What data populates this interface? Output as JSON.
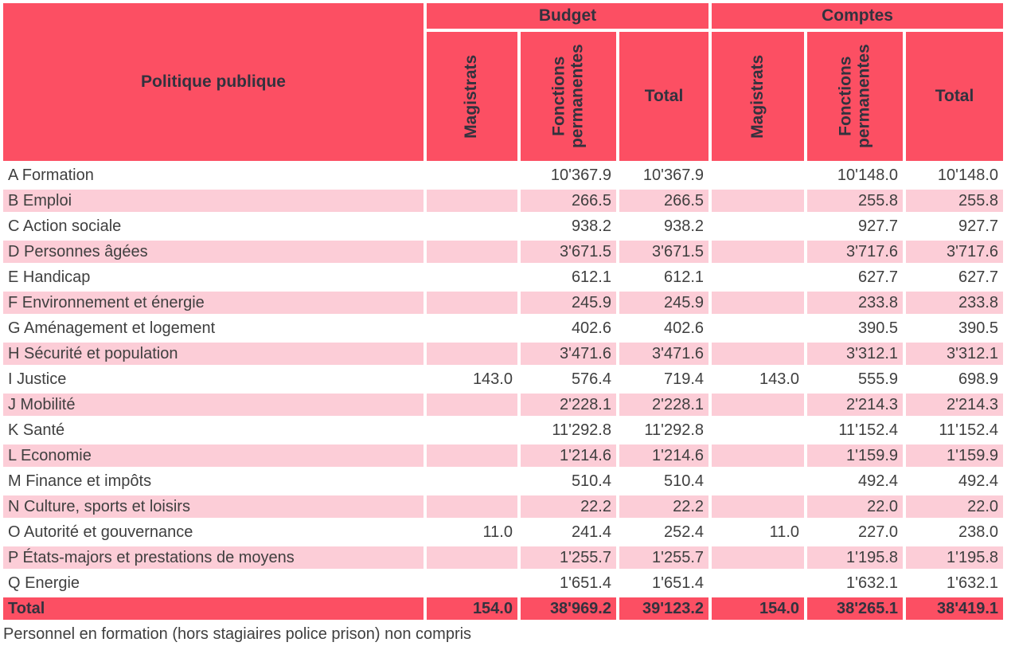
{
  "table": {
    "header": {
      "politique_publique": "Politique publique",
      "groups": [
        {
          "label": "Budget"
        },
        {
          "label": "Comptes"
        }
      ],
      "subcolumns": [
        "Magistrats",
        "Fonctions permanentes",
        "Total"
      ]
    },
    "rows": [
      {
        "label": "A Formation",
        "values": [
          "",
          "10'367.9",
          "10'367.9",
          "",
          "10'148.0",
          "10'148.0"
        ]
      },
      {
        "label": "B Emploi",
        "values": [
          "",
          "266.5",
          "266.5",
          "",
          "255.8",
          "255.8"
        ]
      },
      {
        "label": "C Action sociale",
        "values": [
          "",
          "938.2",
          "938.2",
          "",
          "927.7",
          "927.7"
        ]
      },
      {
        "label": "D Personnes âgées",
        "values": [
          "",
          "3'671.5",
          "3'671.5",
          "",
          "3'717.6",
          "3'717.6"
        ]
      },
      {
        "label": "E Handicap",
        "values": [
          "",
          "612.1",
          "612.1",
          "",
          "627.7",
          "627.7"
        ]
      },
      {
        "label": "F Environnement et énergie",
        "values": [
          "",
          "245.9",
          "245.9",
          "",
          "233.8",
          "233.8"
        ]
      },
      {
        "label": "G Aménagement et logement",
        "values": [
          "",
          "402.6",
          "402.6",
          "",
          "390.5",
          "390.5"
        ]
      },
      {
        "label": "H Sécurité et population",
        "values": [
          "",
          "3'471.6",
          "3'471.6",
          "",
          "3'312.1",
          "3'312.1"
        ]
      },
      {
        "label": "I Justice",
        "values": [
          "143.0",
          "576.4",
          "719.4",
          "143.0",
          "555.9",
          "698.9"
        ]
      },
      {
        "label": "J Mobilité",
        "values": [
          "",
          "2'228.1",
          "2'228.1",
          "",
          "2'214.3",
          "2'214.3"
        ]
      },
      {
        "label": "K Santé",
        "values": [
          "",
          "11'292.8",
          "11'292.8",
          "",
          "11'152.4",
          "11'152.4"
        ]
      },
      {
        "label": "L Economie",
        "values": [
          "",
          "1'214.6",
          "1'214.6",
          "",
          "1'159.9",
          "1'159.9"
        ]
      },
      {
        "label": "M Finance et impôts",
        "values": [
          "",
          "510.4",
          "510.4",
          "",
          "492.4",
          "492.4"
        ]
      },
      {
        "label": "N Culture, sports et loisirs",
        "values": [
          "",
          "22.2",
          "22.2",
          "",
          "22.0",
          "22.0"
        ]
      },
      {
        "label": "O Autorité et gouvernance",
        "values": [
          "11.0",
          "241.4",
          "252.4",
          "11.0",
          "227.0",
          "238.0"
        ]
      },
      {
        "label": "P États-majors et prestations de moyens",
        "values": [
          "",
          "1'255.7",
          "1'255.7",
          "",
          "1'195.8",
          "1'195.8"
        ]
      },
      {
        "label": "Q Energie",
        "values": [
          "",
          "1'651.4",
          "1'651.4",
          "",
          "1'632.1",
          "1'632.1"
        ]
      }
    ],
    "total_row": {
      "label": "Total",
      "values": [
        "154.0",
        "38'969.2",
        "39'123.2",
        "154.0",
        "38'265.1",
        "38'419.1"
      ]
    }
  },
  "footnote": "Personnel en formation (hors stagiaires police prison) non compris",
  "colors": {
    "header_red": "#FC4F63",
    "row_pink": "#FCCDD7",
    "row_white": "#FFFFFF",
    "text_dark": "#3F3F3F"
  }
}
